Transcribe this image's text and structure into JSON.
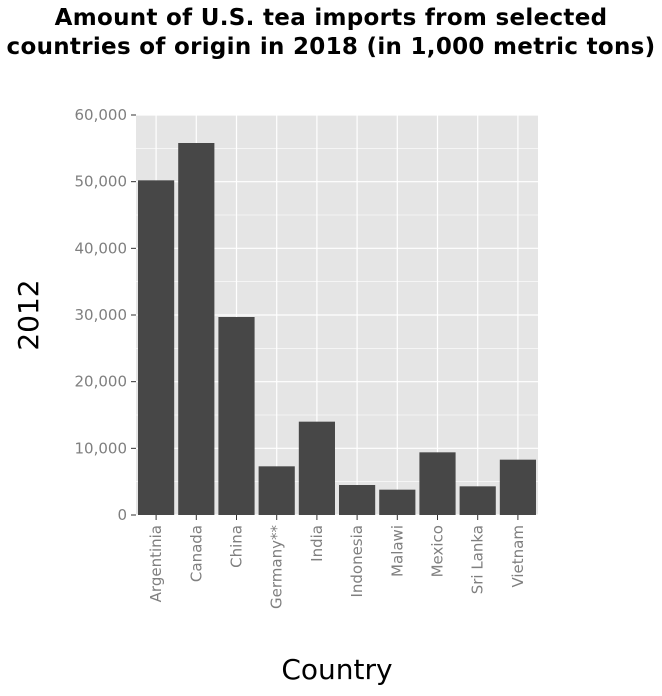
{
  "chart_data": {
    "type": "bar",
    "title": "Amount of U.S. tea imports from selected countries of origin in 2018 (in 1,000 metric tons)",
    "xlabel": "Country",
    "ylabel": "2012",
    "categories": [
      "Argentinia",
      "Canada",
      "China",
      "Germany**",
      "India",
      "Indonesia",
      "Malawi",
      "Mexico",
      "Sri Lanka",
      "Vietnam"
    ],
    "values": [
      50200,
      55800,
      29700,
      7300,
      14000,
      4500,
      3800,
      9400,
      4300,
      8300
    ],
    "ylim": [
      0,
      60000
    ],
    "yticks": [
      0,
      10000,
      20000,
      30000,
      40000,
      50000,
      60000
    ],
    "ytick_labels": [
      "0",
      "10,000",
      "20,000",
      "30,000",
      "40,000",
      "50,000",
      "60,000"
    ],
    "grid": true,
    "legend": "none",
    "colors": {
      "bar": "#474747",
      "panel": "#e5e5e5",
      "grid": "#ffffff",
      "tick_text": "#7f7f7f"
    }
  }
}
